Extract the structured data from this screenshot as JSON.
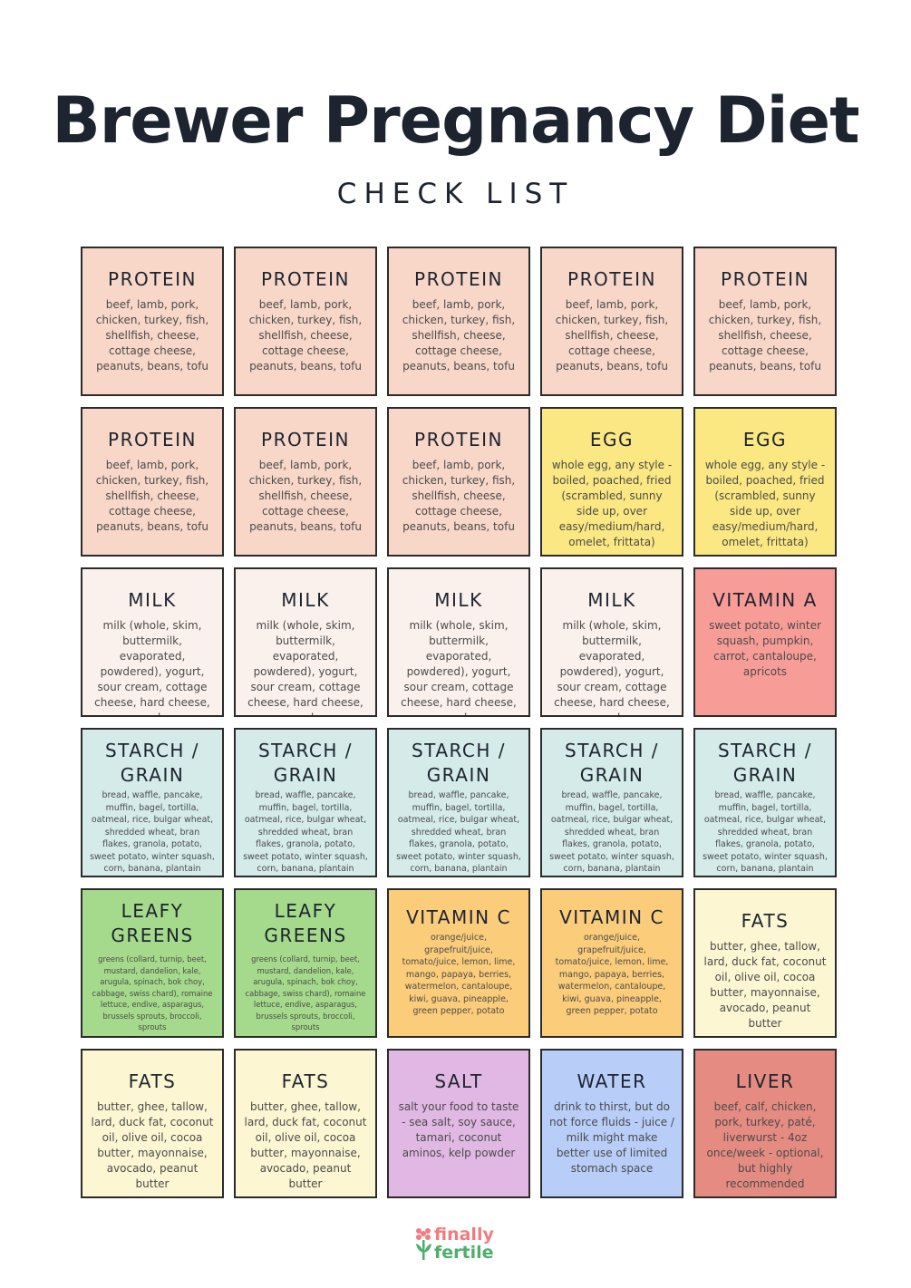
{
  "title": "Brewer Pregnancy Diet",
  "subtitle": "CHECK LIST",
  "colors": {
    "protein": "#f8d7c9",
    "egg": "#fbe882",
    "milk": "#fbf1ec",
    "vitamin_a": "#f89c98",
    "starch": "#d4ebe9",
    "leafy": "#a5d98b",
    "vitamin_c": "#fbcc7a",
    "fats": "#fdf6d2",
    "salt": "#e0b8e3",
    "water": "#b8cdf8",
    "liver": "#e58b82"
  },
  "logo": {
    "line1": "finally",
    "line2": "fertile"
  },
  "cards": [
    {
      "title": "PROTEIN",
      "body": "beef, lamb, pork, chicken, turkey, fish, shellfish, cheese, cottage cheese, peanuts, beans, tofu",
      "color": "#f8d7c9",
      "size": "normal"
    },
    {
      "title": "PROTEIN",
      "body": "beef, lamb, pork, chicken, turkey, fish, shellfish, cheese, cottage cheese, peanuts, beans, tofu",
      "color": "#f8d7c9",
      "size": "normal"
    },
    {
      "title": "PROTEIN",
      "body": "beef, lamb, pork, chicken, turkey, fish, shellfish, cheese, cottage cheese, peanuts, beans, tofu",
      "color": "#f8d7c9",
      "size": "normal"
    },
    {
      "title": "PROTEIN",
      "body": "beef, lamb, pork, chicken, turkey, fish, shellfish, cheese, cottage cheese, peanuts, beans, tofu",
      "color": "#f8d7c9",
      "size": "normal"
    },
    {
      "title": "PROTEIN",
      "body": "beef, lamb, pork, chicken, turkey, fish, shellfish, cheese, cottage cheese, peanuts, beans, tofu",
      "color": "#f8d7c9",
      "size": "normal"
    },
    {
      "title": "PROTEIN",
      "body": "beef, lamb, pork, chicken, turkey, fish, shellfish, cheese, cottage cheese, peanuts, beans, tofu",
      "color": "#f8d7c9",
      "size": "normal"
    },
    {
      "title": "PROTEIN",
      "body": "beef, lamb, pork, chicken, turkey, fish, shellfish, cheese, cottage cheese, peanuts, beans, tofu",
      "color": "#f8d7c9",
      "size": "normal"
    },
    {
      "title": "PROTEIN",
      "body": "beef, lamb, pork, chicken, turkey, fish, shellfish, cheese, cottage cheese, peanuts, beans, tofu",
      "color": "#f8d7c9",
      "size": "normal"
    },
    {
      "title": "EGG",
      "body": "whole egg, any style - boiled, poached, fried (scrambled, sunny side up, over easy/medium/hard, omelet, frittata)",
      "color": "#fbe882",
      "size": "normal"
    },
    {
      "title": "EGG",
      "body": "whole egg, any style - boiled, poached, fried (scrambled, sunny side up, over easy/medium/hard, omelet, frittata)",
      "color": "#fbe882",
      "size": "normal"
    },
    {
      "title": "MILK",
      "body": "milk (whole, skim, buttermilk, evaporated, powdered), yogurt, sour cream, cottage cheese, hard cheese, cream cheese",
      "color": "#fbf1ec",
      "size": "normal"
    },
    {
      "title": "MILK",
      "body": "milk (whole, skim, buttermilk, evaporated, powdered), yogurt, sour cream, cottage cheese, hard cheese, cream cheese",
      "color": "#fbf1ec",
      "size": "normal"
    },
    {
      "title": "MILK",
      "body": "milk (whole, skim, buttermilk, evaporated, powdered), yogurt, sour cream, cottage cheese, hard cheese, cream cheese",
      "color": "#fbf1ec",
      "size": "normal"
    },
    {
      "title": "MILK",
      "body": "milk (whole, skim, buttermilk, evaporated, powdered), yogurt, sour cream, cottage cheese, hard cheese, cream cheese",
      "color": "#fbf1ec",
      "size": "normal"
    },
    {
      "title": "VITAMIN A",
      "body": "sweet potato, winter squash, pumpkin, carrot, cantaloupe, apricots",
      "color": "#f89c98",
      "size": "normal"
    },
    {
      "title": "STARCH / GRAIN",
      "body": "bread, waffle, pancake, muffin, bagel, tortilla, oatmeal, rice, bulgar wheat, shredded wheat, bran flakes, granola, potato, sweet potato, winter squash, corn, banana, plantain",
      "color": "#d4ebe9",
      "size": "small"
    },
    {
      "title": "STARCH / GRAIN",
      "body": "bread, waffle, pancake, muffin, bagel, tortilla, oatmeal, rice, bulgar wheat, shredded wheat, bran flakes, granola, potato, sweet potato, winter squash, corn, banana, plantain",
      "color": "#d4ebe9",
      "size": "small"
    },
    {
      "title": "STARCH / GRAIN",
      "body": "bread, waffle, pancake, muffin, bagel, tortilla, oatmeal, rice, bulgar wheat, shredded wheat, bran flakes, granola, potato, sweet potato, winter squash, corn, banana, plantain",
      "color": "#d4ebe9",
      "size": "small"
    },
    {
      "title": "STARCH / GRAIN",
      "body": "bread, waffle, pancake, muffin, bagel, tortilla, oatmeal, rice, bulgar wheat, shredded wheat, bran flakes, granola, potato, sweet potato, winter squash, corn, banana, plantain",
      "color": "#d4ebe9",
      "size": "small"
    },
    {
      "title": "STARCH / GRAIN",
      "body": "bread, waffle, pancake, muffin, bagel, tortilla, oatmeal, rice, bulgar wheat, shredded wheat, bran flakes, granola, potato, sweet potato, winter squash, corn, banana, plantain",
      "color": "#d4ebe9",
      "size": "small"
    },
    {
      "title": "LEAFY GREENS",
      "body": "greens (collard, turnip, beet, mustard, dandelion, kale, arugula, spinach, bok choy, cabbage, swiss chard), romaine lettuce, endive, asparagus, brussels sprouts, broccoli, sprouts",
      "color": "#a5d98b",
      "size": "xsmall"
    },
    {
      "title": "LEAFY GREENS",
      "body": "greens (collard, turnip, beet, mustard, dandelion, kale, arugula, spinach, bok choy, cabbage, swiss chard), romaine lettuce, endive, asparagus, brussels sprouts, broccoli, sprouts",
      "color": "#a5d98b",
      "size": "xsmall"
    },
    {
      "title": "VITAMIN C",
      "body": "orange/juice, grapefruit/juice, tomato/juice, lemon, lime, mango, papaya, berries, watermelon, cantaloupe, kiwi, guava, pineapple, green pepper, potato",
      "color": "#fbcc7a",
      "size": "small"
    },
    {
      "title": "VITAMIN C",
      "body": "orange/juice, grapefruit/juice, tomato/juice, lemon, lime, mango, papaya, berries, watermelon, cantaloupe, kiwi, guava, pineapple, green pepper, potato",
      "color": "#fbcc7a",
      "size": "small"
    },
    {
      "title": "FATS",
      "body": "butter, ghee, tallow, lard, duck fat, coconut oil, olive oil, cocoa butter, mayonnaise, avocado, peanut butter",
      "color": "#fdf6d2",
      "size": "normal"
    },
    {
      "title": "FATS",
      "body": "butter, ghee, tallow, lard, duck fat, coconut oil, olive oil, cocoa butter, mayonnaise, avocado, peanut butter",
      "color": "#fdf6d2",
      "size": "normal"
    },
    {
      "title": "FATS",
      "body": "butter, ghee, tallow, lard, duck fat, coconut oil, olive oil, cocoa butter, mayonnaise, avocado, peanut butter",
      "color": "#fdf6d2",
      "size": "normal"
    },
    {
      "title": "SALT",
      "body": "salt your food to taste - sea salt, soy sauce, tamari, coconut aminos, kelp powder",
      "color": "#e0b8e3",
      "size": "normal"
    },
    {
      "title": "WATER",
      "body": "drink to thirst, but do not force fluids - juice / milk might make better use of limited stomach space",
      "color": "#b8cdf8",
      "size": "normal"
    },
    {
      "title": "LIVER",
      "body": "beef, calf, chicken, pork, turkey, paté, liverwurst - 4oz once/week - optional, but highly recommended",
      "color": "#e58b82",
      "size": "normal"
    }
  ]
}
